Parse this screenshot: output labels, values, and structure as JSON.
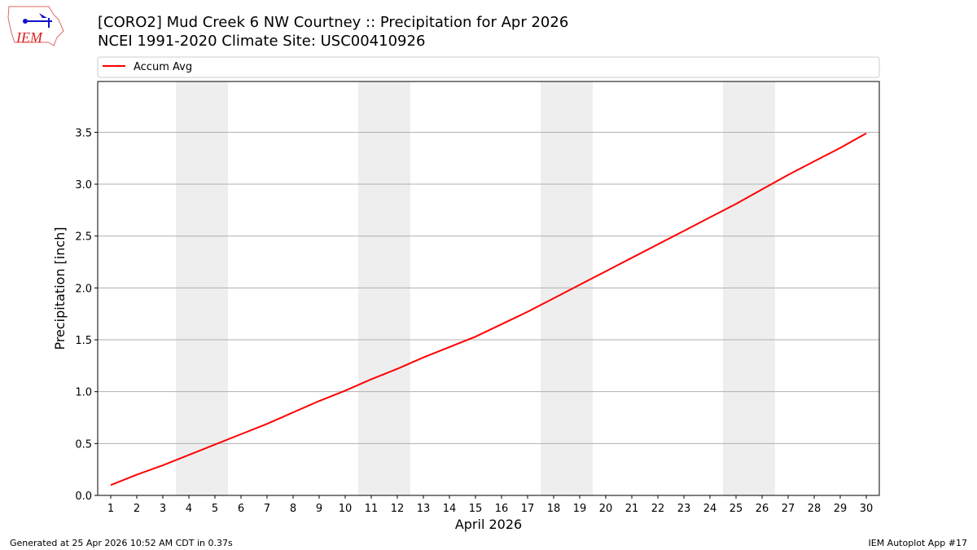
{
  "header": {
    "title_line1": "[CORO2] Mud Creek 6 NW Courtney :: Precipitation for Apr 2026",
    "title_line2": "NCEI 1991-2020 Climate Site: USC00410926",
    "logo_text": "IEM"
  },
  "footer": {
    "generated": "Generated at 25 Apr 2026 10:52 AM CDT in 0.37s",
    "app": "IEM Autoplot App #17"
  },
  "chart_data": {
    "type": "line",
    "xlabel": "April 2026",
    "ylabel": "Precipitation [inch]",
    "x": [
      1,
      2,
      3,
      4,
      5,
      6,
      7,
      8,
      9,
      10,
      11,
      12,
      13,
      14,
      15,
      16,
      17,
      18,
      19,
      20,
      21,
      22,
      23,
      24,
      25,
      26,
      27,
      28,
      29,
      30
    ],
    "xlim": [
      0.5,
      30.5
    ],
    "ylim": [
      0,
      3.99
    ],
    "yticks": [
      0.0,
      0.5,
      1.0,
      1.5,
      2.0,
      2.5,
      3.0,
      3.5
    ],
    "ytick_labels": [
      "0.0",
      "0.5",
      "1.0",
      "1.5",
      "2.0",
      "2.5",
      "3.0",
      "3.5"
    ],
    "grid": "horizontal",
    "legend_placement": "top (above axes)",
    "weekend_shading": [
      [
        3.5,
        5.5
      ],
      [
        10.5,
        12.5
      ],
      [
        17.5,
        19.5
      ],
      [
        24.5,
        26.5
      ]
    ],
    "shading_color": "#eeeeee",
    "series": [
      {
        "name": "Accum Avg",
        "color": "#ff0000",
        "values": [
          0.1,
          0.2,
          0.29,
          0.39,
          0.49,
          0.59,
          0.69,
          0.8,
          0.91,
          1.01,
          1.12,
          1.22,
          1.33,
          1.43,
          1.53,
          1.65,
          1.77,
          1.9,
          2.03,
          2.16,
          2.29,
          2.42,
          2.55,
          2.68,
          2.81,
          2.95,
          3.09,
          3.22,
          3.35,
          3.49
        ]
      }
    ]
  }
}
